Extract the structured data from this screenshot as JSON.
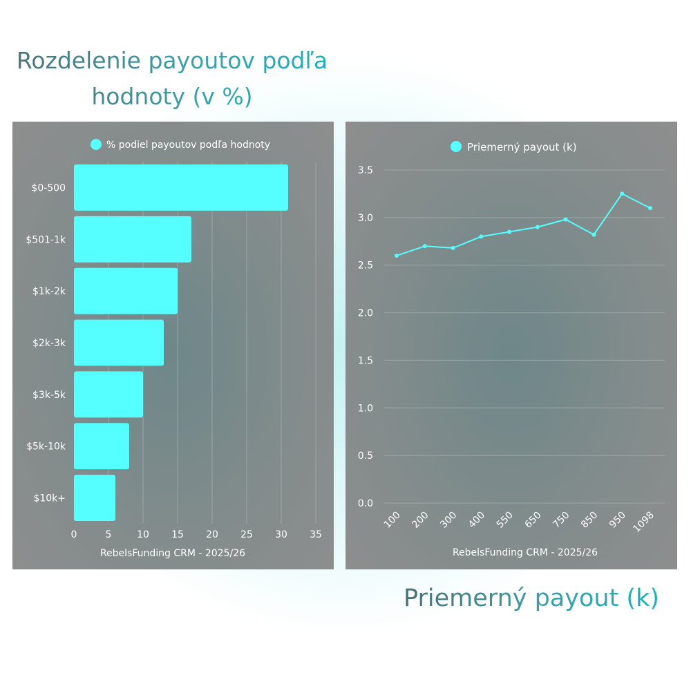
{
  "titles": {
    "left": "Rozdelenie payoutov podľa hodnoty (v %)",
    "right": "Priemerný payout (k)"
  },
  "colors": {
    "accent": "#55ffff",
    "text": "#ffffff",
    "grid": "#b7bcbc"
  },
  "chart_data": [
    {
      "type": "bar",
      "orientation": "horizontal",
      "categories": [
        "$0-500",
        "$501-1k",
        "$1k-2k",
        "$2k-3k",
        "$3k-5k",
        "$5k-10k",
        "$10k+"
      ],
      "series": [
        {
          "name": "% podiel payoutov podľa hodnoty",
          "values": [
            31,
            17,
            15,
            13,
            10,
            8,
            6
          ]
        }
      ],
      "xlim": [
        0,
        35
      ],
      "xticks": [
        "0",
        "5",
        "10",
        "15",
        "20",
        "25",
        "30",
        "35"
      ],
      "footer": "RebelsFunding CRM - 2025/26",
      "legend_position": "top-center",
      "grid": "vertical"
    },
    {
      "type": "line",
      "x": [
        "100",
        "200",
        "300",
        "400",
        "550",
        "650",
        "750",
        "850",
        "950",
        "1098"
      ],
      "series": [
        {
          "name": "Priemerný payout (k)",
          "values": [
            2.6,
            2.7,
            2.68,
            2.8,
            2.85,
            2.9,
            2.98,
            2.82,
            3.25,
            3.1
          ]
        }
      ],
      "ylim": [
        0,
        3.5
      ],
      "yticks": [
        "0.0",
        "0.5",
        "1.0",
        "1.5",
        "2.0",
        "2.5",
        "3.0",
        "3.5"
      ],
      "footer": "RebelsFunding CRM - 2025/26",
      "legend_position": "top-center",
      "grid": "horizontal"
    }
  ]
}
